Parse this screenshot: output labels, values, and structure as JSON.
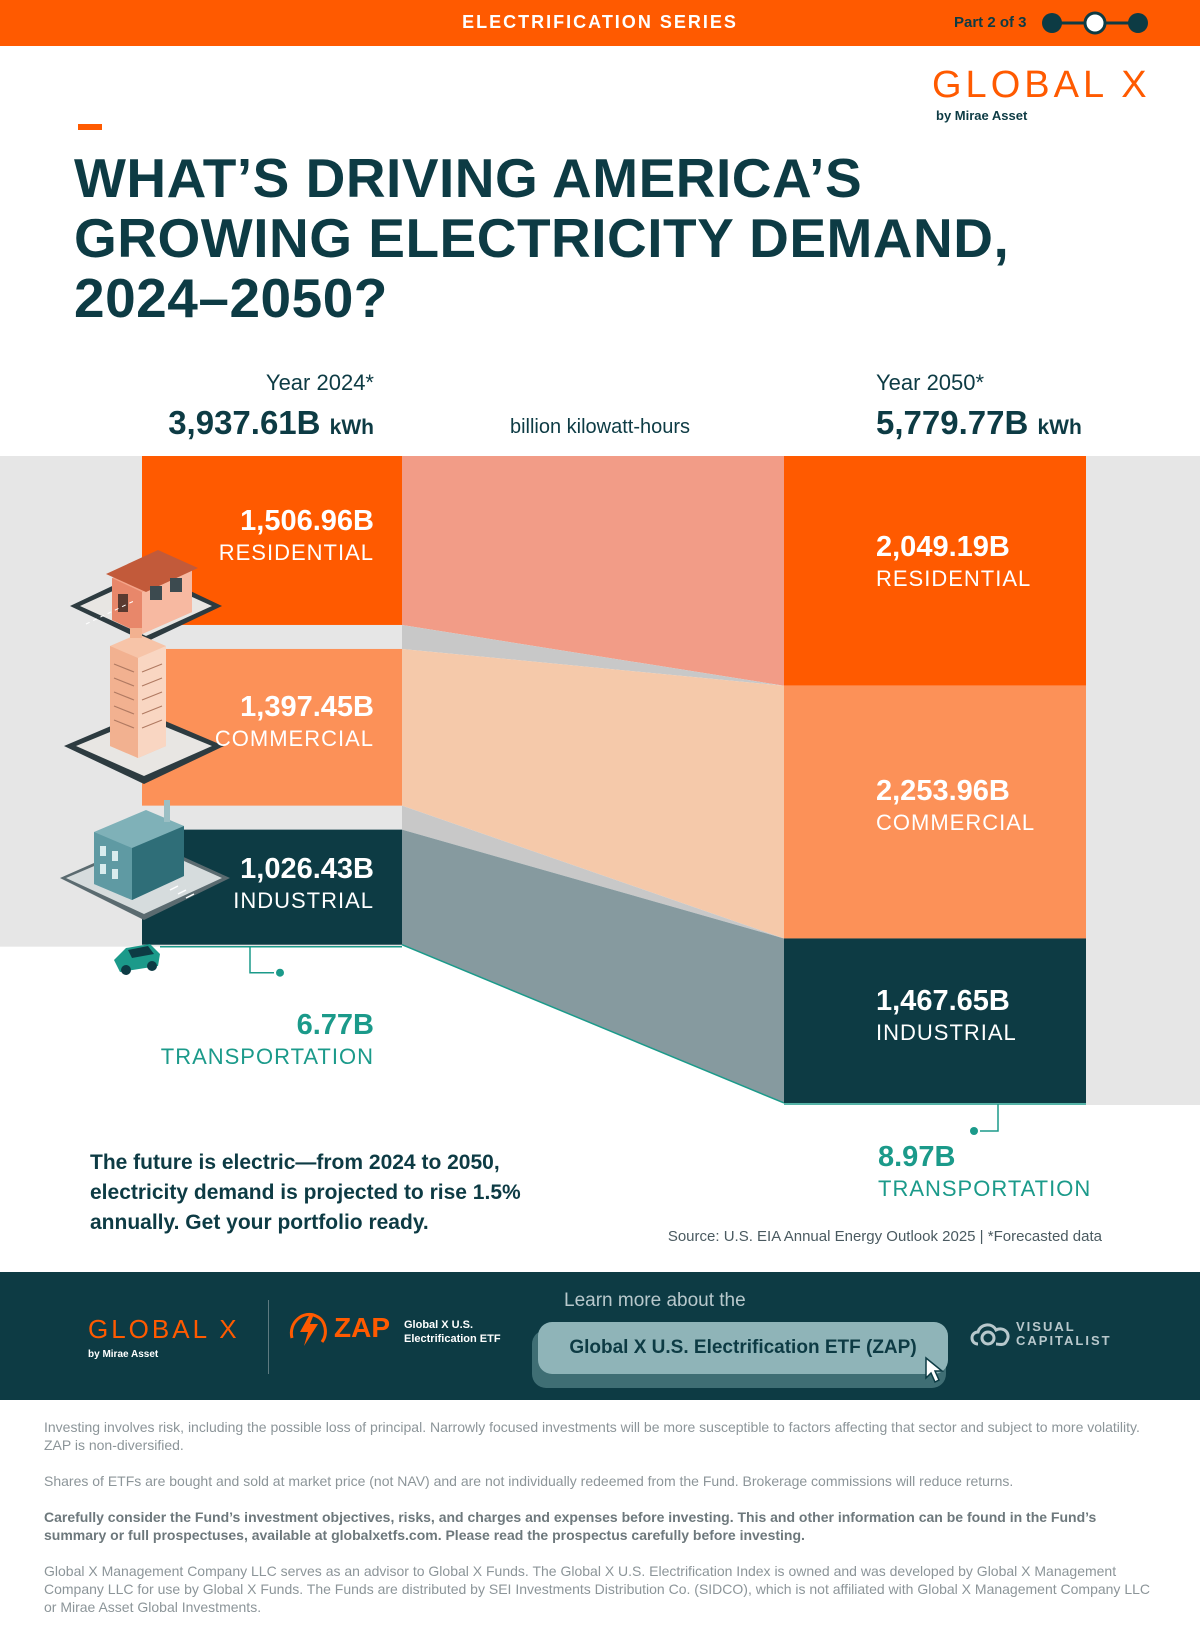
{
  "header": {
    "series": "ELECTRIFICATION SERIES",
    "part": "Part 2 of 3",
    "colors": {
      "brand_orange": "#ff5a00",
      "dark_teal": "#0d3b44",
      "mid_orange": "#fc9158",
      "teal_accent": "#1b9a8a"
    }
  },
  "brand": {
    "name": "GLOBAL X",
    "sub": "by Mirae Asset"
  },
  "title": "WHAT’S DRIVING AMERICA’S GROWING ELECTRICITY DEMAND, 2024–2050?",
  "chart_data": {
    "type": "sankey",
    "unit_label": "billion kilowatt-hours",
    "years": [
      {
        "label": "Year 2024*",
        "total": "3,937.61B",
        "total_value": 3937.61,
        "unit": "kWh",
        "segments": [
          {
            "category": "RESIDENTIAL",
            "label": "1,506.96B",
            "value": 1506.96,
            "color": "#ff5a00"
          },
          {
            "category": "COMMERCIAL",
            "label": "1,397.45B",
            "value": 1397.45,
            "color": "#fc9158"
          },
          {
            "category": "INDUSTRIAL",
            "label": "1,026.43B",
            "value": 1026.43,
            "color": "#0d3b44"
          },
          {
            "category": "TRANSPORTATION",
            "label": "6.77B",
            "value": 6.77,
            "color": "#1b9a8a"
          }
        ]
      },
      {
        "label": "Year 2050*",
        "total": "5,779.77B",
        "total_value": 5779.77,
        "unit": "kWh",
        "segments": [
          {
            "category": "RESIDENTIAL",
            "label": "2,049.19B",
            "value": 2049.19,
            "color": "#ff5a00"
          },
          {
            "category": "COMMERCIAL",
            "label": "2,253.96B",
            "value": 2253.96,
            "color": "#fc9158"
          },
          {
            "category": "INDUSTRIAL",
            "label": "1,467.65B",
            "value": 1467.65,
            "color": "#0d3b44"
          },
          {
            "category": "TRANSPORTATION",
            "label": "8.97B",
            "value": 8.97,
            "color": "#1b9a8a"
          }
        ]
      }
    ],
    "flow_colors": [
      "#f29c87",
      "#f5c9aa",
      "#869a9f"
    ]
  },
  "message": "The future is electric—from 2024 to 2050, electricity demand is projected to rise 1.5% annually. Get your portfolio ready.",
  "source": "Source: U.S. EIA Annual Energy Outlook 2025 | *Forecasted data",
  "footer": {
    "logo_name": "GLOBAL X",
    "logo_sub": "by Mirae Asset",
    "zap_name": "ZAP",
    "zap_desc": "Global X U.S. Electrification ETF",
    "learn": "Learn more about the",
    "cta": "Global X U.S. Electrification ETF (ZAP)",
    "vc": "VISUAL CAPITALIST"
  },
  "disclaimers": [
    "Investing involves risk, including the possible loss of principal. Narrowly focused investments will be more susceptible to factors affecting that sector and subject to more volatility. ZAP is non-diversified.",
    "Shares of ETFs are bought and sold at market price (not NAV) and are not individually redeemed from the Fund. Brokerage commissions will reduce returns.",
    "Carefully consider the Fund’s investment objectives, risks, and charges and expenses before investing. This and other information can be found in the Fund’s summary or full prospectuses, available at globalxetfs.com. Please read the prospectus carefully before investing.",
    "Global X Management Company LLC serves as an advisor to Global X Funds. The Global X U.S. Electrification Index is owned and was developed by Global X Management Company LLC for use by Global X Funds. The Funds are distributed by SEI Investments Distribution Co. (SIDCO), which is not affiliated with Global X Management Company LLC or Mirae Asset Global Investments."
  ]
}
